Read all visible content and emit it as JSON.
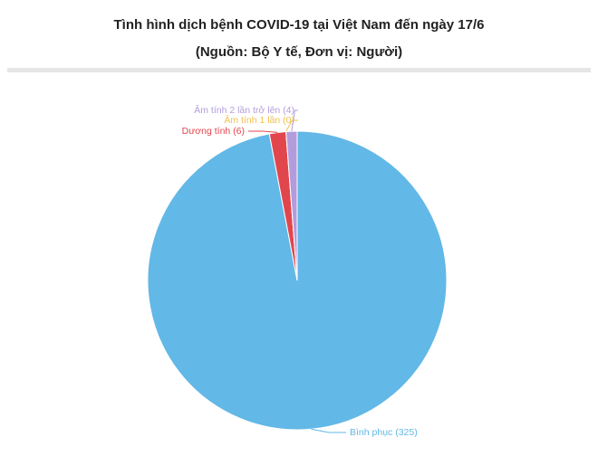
{
  "chart_data": {
    "type": "pie",
    "title": "Tình hình dịch bệnh COVID-19 tại Việt Nam đến ngày 17/6",
    "subtitle": "(Nguồn: Bộ Y tế, Đơn vị: Người)",
    "categories": [
      "Bình phục",
      "Dương tính",
      "Âm tính 1 lần",
      "Âm tính 2 lần trở lên"
    ],
    "values": [
      325,
      6,
      0,
      4
    ],
    "value_labels": [
      "Bình phục (325)",
      "Dương tính (6)",
      "Âm tính 1 lần (0)",
      "Âm tính 2 lần trở lên (4)"
    ],
    "colors": [
      "#62b8e6",
      "#e2464d",
      "#f1c04b",
      "#b39cdc"
    ]
  }
}
